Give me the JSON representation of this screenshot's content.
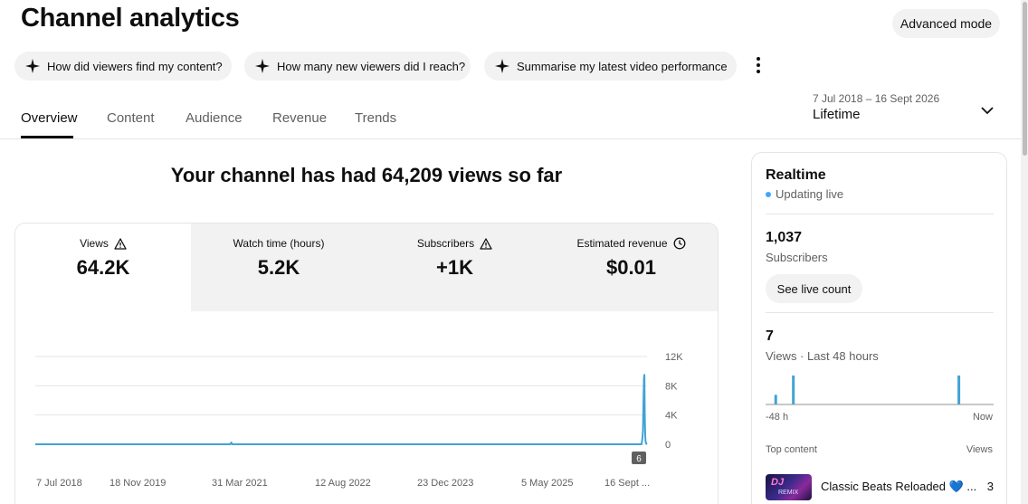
{
  "page": {
    "title": "Channel analytics"
  },
  "header": {
    "advanced_label": "Advanced mode"
  },
  "chips": [
    {
      "label": "How did viewers find my content?"
    },
    {
      "label": "How many new viewers did I reach?"
    },
    {
      "label": "Summarise my latest video performance"
    }
  ],
  "tabs": [
    {
      "label": "Overview",
      "active": true
    },
    {
      "label": "Content"
    },
    {
      "label": "Audience"
    },
    {
      "label": "Revenue"
    },
    {
      "label": "Trends"
    }
  ],
  "date_picker": {
    "range": "7 Jul 2018 – 16 Sept 2026",
    "period": "Lifetime"
  },
  "headline": "Your channel has had 64,209 views so far",
  "metrics": [
    {
      "label": "Views",
      "value": "64.2K",
      "icon": "warning-icon",
      "active": true
    },
    {
      "label": "Watch time (hours)",
      "value": "5.2K",
      "icon": ""
    },
    {
      "label": "Subscribers",
      "value": "+1K",
      "icon": "warning-icon"
    },
    {
      "label": "Estimated revenue",
      "value": "$0.01",
      "icon": "clock-icon"
    }
  ],
  "chart_data": {
    "type": "line",
    "xlabel": "",
    "ylabel": "",
    "x_ticks": [
      "7 Jul 2018",
      "18 Nov 2019",
      "31 Mar 2021",
      "12 Aug 2022",
      "23 Dec 2023",
      "5 May 2025",
      "16 Sept ..."
    ],
    "y_ticks": [
      "12K",
      "8K",
      "4K",
      "0"
    ],
    "ylim": [
      0,
      12000
    ],
    "x_domain": [
      "2018-07-07",
      "2026-09-16"
    ],
    "grid": true,
    "series_color": "#41a3d4",
    "series": [
      {
        "points": [
          [
            "2018-07-07",
            0
          ],
          [
            "2021-02-15",
            0
          ],
          [
            "2021-02-20",
            250
          ],
          [
            "2021-02-25",
            0
          ],
          [
            "2026-08-20",
            0
          ],
          [
            "2026-08-24",
            700
          ],
          [
            "2026-08-27",
            1800
          ],
          [
            "2026-08-30",
            6500
          ],
          [
            "2026-09-01",
            9000
          ],
          [
            "2026-09-03",
            9500
          ],
          [
            "2026-09-05",
            4000
          ],
          [
            "2026-09-07",
            1200
          ],
          [
            "2026-09-09",
            400
          ],
          [
            "2026-09-12",
            100
          ],
          [
            "2026-09-16",
            6
          ]
        ]
      }
    ],
    "latest_value_badge": "6"
  },
  "realtime": {
    "title": "Realtime",
    "status": "Updating live",
    "status_color": "#3ea6ff",
    "subscribers_value": "1,037",
    "subscribers_label": "Subscribers",
    "live_button": "See live count",
    "views_value": "7",
    "views_label": "Views · Last 48 hours",
    "bar_color": "#41a3d4",
    "bars_48h": [
      0,
      0,
      0,
      0,
      0,
      0,
      0,
      0,
      0,
      0,
      1,
      0,
      0,
      0,
      0,
      0,
      0,
      0,
      0,
      0,
      0,
      0,
      0,
      0,
      0,
      0,
      0,
      0,
      0,
      0,
      3,
      0,
      0,
      0,
      0,
      0,
      0,
      0,
      0,
      0,
      0,
      0,
      0,
      0,
      0,
      0,
      0,
      0,
      0,
      0,
      0,
      0,
      0,
      0,
      0,
      0,
      0,
      0,
      0,
      0,
      0,
      0,
      0,
      0,
      0,
      0,
      0,
      0,
      0,
      0,
      0,
      0,
      0,
      0,
      0,
      0,
      0,
      0,
      0,
      0,
      0,
      0,
      0,
      0,
      0,
      0,
      0,
      0,
      0,
      0,
      0,
      0,
      0,
      0,
      0,
      0,
      0,
      0,
      0,
      0,
      0,
      0,
      0,
      0,
      0,
      0,
      0,
      0,
      0,
      0,
      0,
      0,
      0,
      0,
      0,
      0,
      0,
      0,
      0,
      0,
      0,
      0,
      0,
      0,
      0,
      0,
      0,
      0,
      0,
      0,
      0,
      0,
      0,
      0,
      0,
      0,
      0,
      0,
      0,
      0,
      0,
      0,
      0,
      0,
      0,
      0,
      0,
      0,
      0,
      0,
      0,
      0,
      0,
      0,
      0,
      0,
      0,
      0,
      0,
      0,
      0,
      0,
      0,
      0,
      0,
      0,
      0,
      0,
      0,
      0,
      0,
      0,
      0,
      0,
      0,
      0,
      0,
      0,
      0,
      0,
      0,
      0,
      0,
      0,
      0,
      0,
      0,
      0,
      0,
      0,
      0,
      0,
      0,
      0,
      0,
      0,
      0,
      0,
      0,
      0,
      0,
      0,
      0,
      0,
      0,
      0,
      0,
      0,
      0,
      0,
      0,
      0,
      0,
      0,
      0,
      0,
      0,
      0,
      3,
      0,
      0,
      0,
      0,
      0,
      0,
      0,
      0,
      0,
      0,
      0,
      0,
      0,
      0,
      0,
      0,
      0,
      0,
      0,
      0,
      0,
      0,
      0,
      0,
      0,
      0,
      0,
      0,
      0,
      0,
      0,
      0,
      0,
      0,
      0,
      0,
      0,
      0,
      0,
      0
    ],
    "axis_start": "-48 h",
    "axis_end": "Now",
    "top_content_label": "Top content",
    "top_content_views_label": "Views",
    "top_items": [
      {
        "title": "Classic Beats Reloaded 💙 ...",
        "views": "3",
        "thumb_text": "DJ",
        "thumb_sub": "REMIX"
      }
    ]
  }
}
